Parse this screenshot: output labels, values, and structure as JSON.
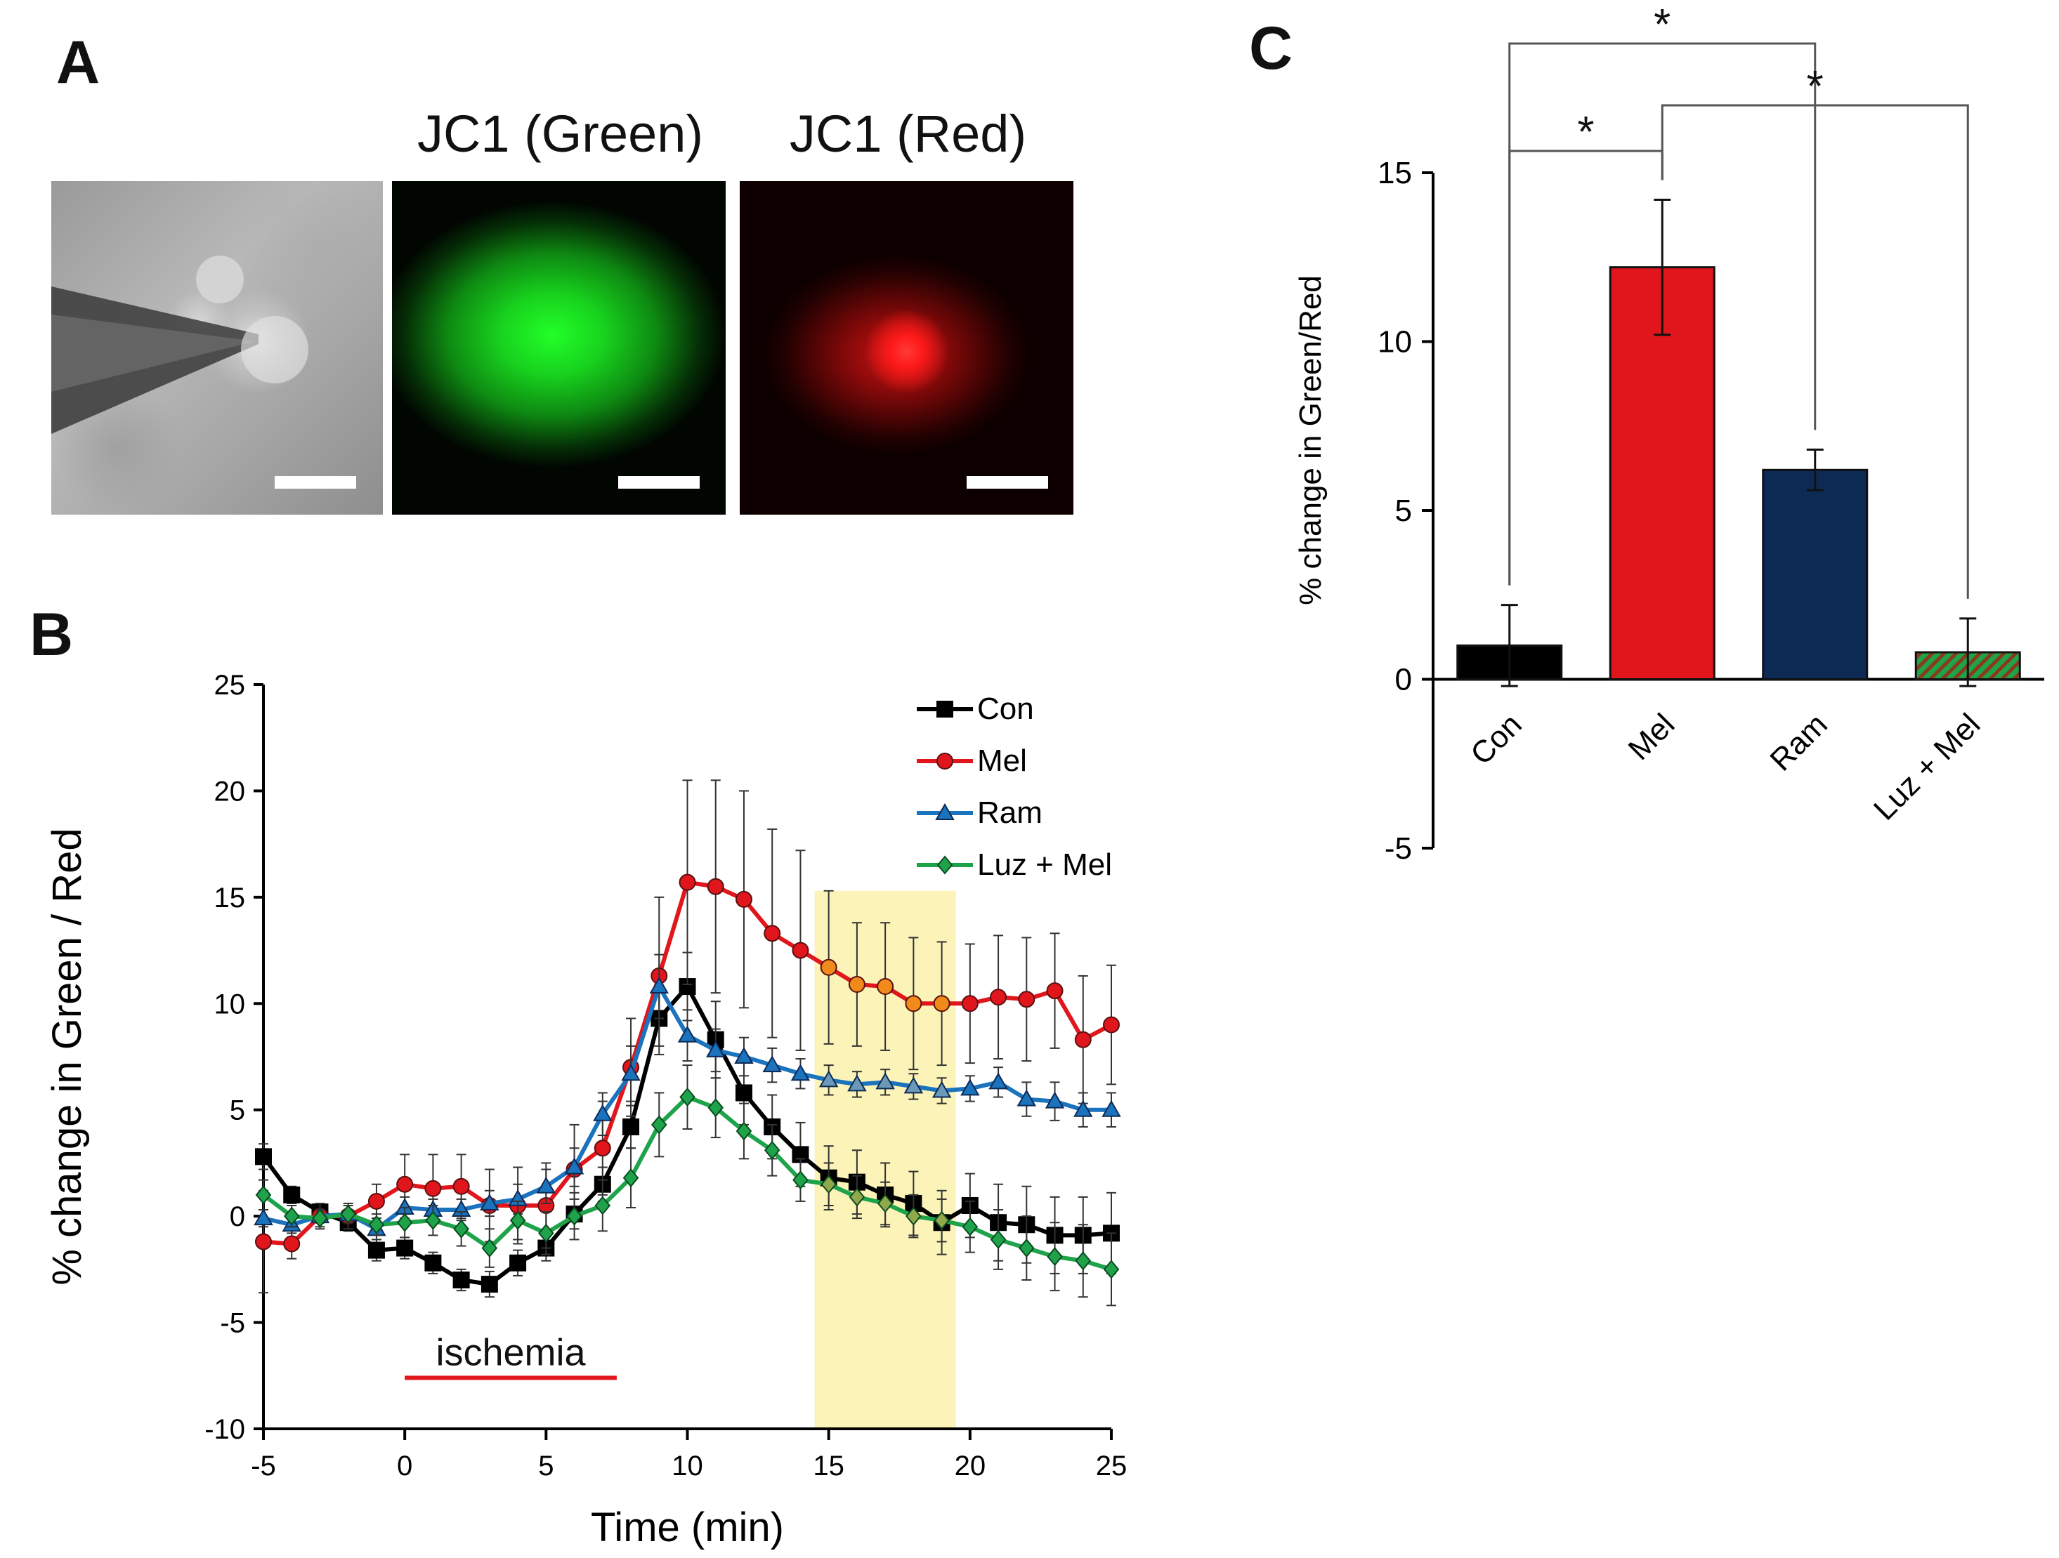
{
  "panels": {
    "a": {
      "letter": "A",
      "title_green": "JC1 (Green)",
      "title_red": "JC1 (Red)"
    },
    "b": {
      "letter": "B"
    },
    "c": {
      "letter": "C"
    }
  },
  "colors": {
    "con": "#000000",
    "mel": "#e0161c",
    "ram": "#1b72bd",
    "luzmel": "#1ea34a",
    "highlight": "#fbf3b8",
    "ischemia": "#e0161c",
    "ram_bar": "#0d2a55",
    "mel_highlight": "#f08a1a",
    "ram_highlight": "#6b99b8",
    "luz_highlight": "#8fa84a"
  },
  "chart_data": [
    {
      "id": "B",
      "type": "line",
      "title": "",
      "xlabel": "Time (min)",
      "ylabel": "% change in Green / Red",
      "xlim": [
        -5,
        25
      ],
      "ylim": [
        -10,
        25
      ],
      "xticks": [
        -5,
        0,
        5,
        10,
        15,
        20,
        25
      ],
      "yticks": [
        -10,
        -5,
        0,
        5,
        10,
        15,
        20,
        25
      ],
      "x": [
        -5,
        -4,
        -3,
        -2,
        -1,
        0,
        1,
        2,
        3,
        4,
        5,
        6,
        7,
        8,
        9,
        10,
        11,
        12,
        13,
        14,
        15,
        16,
        17,
        18,
        19,
        20,
        21,
        22,
        23,
        24,
        25
      ],
      "series": [
        {
          "name": "Con",
          "key": "con",
          "marker": "square",
          "values": [
            2.8,
            1.0,
            0.2,
            -0.3,
            -1.6,
            -1.5,
            -2.2,
            -3.0,
            -3.2,
            -2.2,
            -1.5,
            0.1,
            1.5,
            4.2,
            9.3,
            10.8,
            8.3,
            5.8,
            4.2,
            2.9,
            1.8,
            1.6,
            1.0,
            0.6,
            -0.3,
            0.5,
            -0.3,
            -0.4,
            -0.9,
            -0.9,
            -0.8
          ],
          "errors": [
            0.6,
            0.4,
            0.3,
            0.4,
            0.5,
            0.5,
            0.5,
            0.5,
            0.6,
            0.6,
            0.6,
            0.7,
            0.8,
            1.0,
            1.3,
            1.6,
            1.8,
            1.5,
            1.5,
            1.5,
            1.5,
            1.5,
            1.5,
            1.5,
            1.5,
            1.5,
            1.8,
            1.8,
            1.8,
            1.8,
            1.9
          ]
        },
        {
          "name": "Mel",
          "key": "mel",
          "marker": "circle",
          "values": [
            -1.2,
            -1.3,
            0.0,
            0.0,
            0.7,
            1.5,
            1.3,
            1.4,
            0.5,
            0.5,
            0.5,
            2.2,
            3.2,
            7.0,
            11.3,
            15.7,
            15.5,
            14.9,
            13.3,
            12.5,
            11.7,
            10.9,
            10.8,
            10.0,
            10.0,
            10.0,
            10.3,
            10.2,
            10.6,
            8.3,
            9.0
          ],
          "errors": [
            2.4,
            0.7,
            0.6,
            0.6,
            0.8,
            1.4,
            1.6,
            1.5,
            1.7,
            1.8,
            2.0,
            2.1,
            2.2,
            2.3,
            3.7,
            4.8,
            5.0,
            5.1,
            4.9,
            4.7,
            3.6,
            2.9,
            3.0,
            3.1,
            2.9,
            2.8,
            2.9,
            2.9,
            2.7,
            3.0,
            2.8
          ]
        },
        {
          "name": "Ram",
          "key": "ram",
          "marker": "triangle",
          "values": [
            -0.1,
            -0.4,
            0.0,
            0.1,
            -0.6,
            0.4,
            0.3,
            0.3,
            0.6,
            0.8,
            1.4,
            2.3,
            4.8,
            6.7,
            10.8,
            8.5,
            7.8,
            7.5,
            7.1,
            6.7,
            6.4,
            6.2,
            6.3,
            6.1,
            5.9,
            6.0,
            6.3,
            5.5,
            5.4,
            5.0,
            5.0
          ],
          "errors": [
            0.4,
            0.4,
            0.3,
            0.4,
            0.5,
            0.5,
            0.5,
            0.5,
            0.6,
            0.7,
            0.8,
            0.9,
            1.0,
            1.3,
            1.5,
            1.2,
            1.0,
            0.9,
            0.8,
            0.7,
            0.7,
            0.6,
            0.6,
            0.6,
            0.6,
            0.6,
            0.7,
            0.8,
            0.9,
            0.8,
            0.8
          ]
        },
        {
          "name": "Luz + Mel",
          "key": "luzmel",
          "marker": "diamond",
          "values": [
            1.0,
            0.0,
            -0.1,
            0.1,
            -0.4,
            -0.3,
            -0.2,
            -0.6,
            -1.5,
            -0.2,
            -0.8,
            0.0,
            0.5,
            1.8,
            4.3,
            5.6,
            5.1,
            4.0,
            3.1,
            1.7,
            1.5,
            0.9,
            0.6,
            0.0,
            -0.2,
            -0.5,
            -1.1,
            -1.5,
            -1.9,
            -2.1,
            -2.5
          ],
          "errors": [
            0.7,
            0.5,
            0.4,
            0.4,
            0.5,
            0.7,
            0.7,
            0.8,
            0.9,
            0.9,
            1.0,
            1.1,
            1.2,
            1.4,
            1.5,
            1.5,
            1.4,
            1.3,
            1.2,
            1.0,
            1.0,
            1.0,
            1.0,
            1.0,
            1.0,
            1.2,
            1.4,
            1.5,
            1.6,
            1.7,
            1.7
          ]
        }
      ],
      "highlight_x": [
        14.5,
        19.5
      ],
      "annotation": {
        "text": "ischemia",
        "x": [
          0,
          7.5
        ]
      },
      "legend_position": "top-right"
    },
    {
      "id": "C",
      "type": "bar",
      "title": "",
      "ylabel": "% change in Green/Red",
      "xlabel": "",
      "ylim": [
        -5,
        15
      ],
      "yticks": [
        -5,
        0,
        5,
        10,
        15
      ],
      "categories": [
        "Con",
        "Mel",
        "Ram",
        "Luz + Mel"
      ],
      "values": [
        1.0,
        12.2,
        6.2,
        0.8
      ],
      "errors": [
        1.2,
        2.0,
        0.6,
        1.0
      ],
      "bar_keys": [
        "con",
        "mel",
        "ram_bar",
        "luzmel"
      ],
      "significance": [
        {
          "from": 0,
          "to": 2,
          "text": "*"
        },
        {
          "from": 0,
          "to": 1,
          "text": "*"
        },
        {
          "from": 1,
          "to": 3,
          "text": "*"
        }
      ]
    }
  ]
}
